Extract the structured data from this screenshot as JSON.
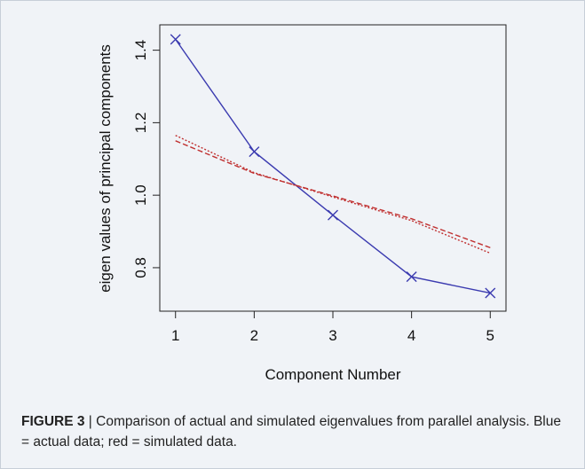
{
  "caption": {
    "label": "FIGURE 3",
    "separator": " | ",
    "text": "Comparison of actual and simulated eigenvalues from parallel analysis. Blue = actual data; red = simulated data."
  },
  "chart_data": {
    "type": "line",
    "xlabel": "Component Number",
    "ylabel": "eigen values of principal components",
    "x": [
      1,
      2,
      3,
      4,
      5
    ],
    "xticks": [
      1,
      2,
      3,
      4,
      5
    ],
    "yticks": [
      0.8,
      1.0,
      1.2,
      1.4
    ],
    "ytick_labels": [
      "0.8",
      "1.0",
      "1.2",
      "1.4"
    ],
    "xlim": [
      0.8,
      5.2
    ],
    "ylim": [
      0.68,
      1.47
    ],
    "grid": false,
    "legend": "none",
    "series": [
      {
        "values": [
          1.43,
          1.12,
          0.945,
          0.775,
          0.73
        ],
        "color": "#3b3bb0",
        "style": "solid",
        "marker": "x"
      },
      {
        "values": [
          1.15,
          1.06,
          0.998,
          0.935,
          0.855
        ],
        "color": "#c03030",
        "style": "dashed",
        "marker": "none"
      },
      {
        "values": [
          1.165,
          1.062,
          0.995,
          0.93,
          0.84
        ],
        "color": "#c03030",
        "style": "dotted",
        "marker": "none"
      }
    ]
  }
}
